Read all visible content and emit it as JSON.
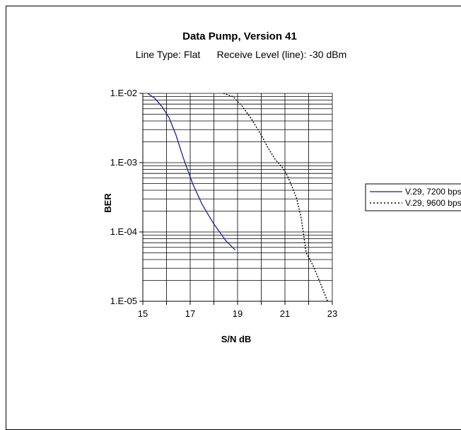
{
  "chart_data": {
    "type": "line",
    "title": "Data Pump, Version 41",
    "subtitle": "Line Type: Flat      Receive Level (line): -30 dBm",
    "xlabel": "S/N dB",
    "ylabel": "BER",
    "x_ticks": [
      "15",
      "17",
      "19",
      "21",
      "23"
    ],
    "y_ticks": [
      "1.E-02",
      "1.E-03",
      "1.E-04",
      "1.E-05"
    ],
    "xlim": [
      15,
      23
    ],
    "ylim": [
      1e-05,
      0.01
    ],
    "y_scale": "log",
    "grid": true,
    "legend_position": "right",
    "series": [
      {
        "name": "V.29, 7200 bps",
        "color": "#1f1f8f",
        "style": "solid",
        "x": [
          15.2,
          15.5,
          15.8,
          16.1,
          16.4,
          16.7,
          17.1,
          17.5,
          18.0,
          18.5,
          18.9
        ],
        "y": [
          0.01,
          0.0085,
          0.0065,
          0.0045,
          0.0025,
          0.0012,
          0.0005,
          0.00025,
          0.00013,
          7.5e-05,
          5.5e-05
        ]
      },
      {
        "name": "V.29, 9600 bps",
        "color": "#000000",
        "style": "dotted",
        "x": [
          18.4,
          18.8,
          19.2,
          19.6,
          20.0,
          20.3,
          20.6,
          20.9,
          21.1,
          21.3,
          21.5,
          21.7,
          21.9,
          22.2,
          22.5,
          22.8
        ],
        "y": [
          0.01,
          0.009,
          0.0065,
          0.0042,
          0.0025,
          0.0016,
          0.0011,
          0.00085,
          0.00065,
          0.00045,
          0.0003,
          0.00015,
          5e-05,
          3.2e-05,
          1.8e-05,
          1e-05
        ]
      }
    ]
  }
}
